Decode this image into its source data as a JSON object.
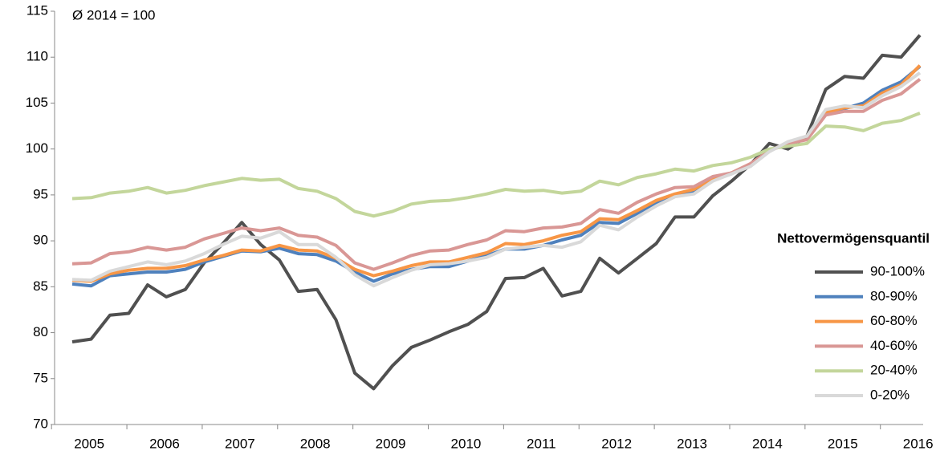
{
  "chart_data": {
    "type": "line",
    "annotation": "Ø 2014 = 100",
    "legend_title": "Nettovermögensquantil",
    "legend": "right",
    "categories": [
      "2005",
      null,
      null,
      null,
      "2006",
      null,
      null,
      null,
      "2007",
      null,
      null,
      null,
      "2008",
      null,
      null,
      null,
      "2009",
      null,
      null,
      null,
      "2010",
      null,
      null,
      null,
      "2011",
      null,
      null,
      null,
      "2012",
      null,
      null,
      null,
      "2013",
      null,
      null,
      null,
      "2014",
      null,
      null,
      null,
      "2015",
      null,
      null,
      null,
      "2016",
      null
    ],
    "ylim": [
      70,
      115
    ],
    "yticks": [
      70,
      75,
      80,
      85,
      90,
      95,
      100,
      105,
      110,
      115
    ],
    "grid": false,
    "series": [
      {
        "name": "90-100%",
        "color": "#505050",
        "values": [
          79.0,
          79.3,
          81.9,
          82.1,
          85.2,
          83.9,
          84.7,
          87.6,
          89.7,
          92.0,
          89.6,
          87.9,
          84.5,
          84.7,
          81.4,
          75.6,
          73.9,
          76.4,
          78.4,
          79.2,
          80.1,
          80.9,
          82.3,
          85.9,
          86.0,
          87.0,
          84.0,
          84.5,
          88.1,
          86.5,
          88.1,
          89.7,
          92.6,
          92.6,
          94.9,
          96.5,
          98.3,
          100.6,
          100.0,
          101.4,
          106.5,
          107.9,
          107.7,
          110.2,
          110.0,
          112.4
        ]
      },
      {
        "name": "80-90%",
        "color": "#4f81bd",
        "values": [
          85.3,
          85.1,
          86.2,
          86.4,
          86.6,
          86.6,
          86.9,
          87.7,
          88.3,
          88.9,
          88.8,
          89.2,
          88.6,
          88.5,
          87.8,
          86.6,
          85.6,
          86.4,
          86.9,
          87.2,
          87.2,
          87.8,
          88.4,
          89.1,
          89.1,
          89.5,
          90.1,
          90.6,
          92.0,
          91.9,
          93.0,
          94.1,
          94.9,
          95.4,
          96.6,
          97.3,
          98.3,
          99.8,
          100.7,
          101.3,
          103.9,
          104.4,
          105.0,
          106.4,
          107.3,
          109.0
        ]
      },
      {
        "name": "60-80%",
        "color": "#f79646",
        "values": [
          85.7,
          85.6,
          86.4,
          86.8,
          87.0,
          87.0,
          87.3,
          87.9,
          88.4,
          89.0,
          88.9,
          89.5,
          89.0,
          88.9,
          88.1,
          86.9,
          86.2,
          86.7,
          87.3,
          87.7,
          87.7,
          88.2,
          88.7,
          89.7,
          89.6,
          90.0,
          90.6,
          91.0,
          92.4,
          92.3,
          93.3,
          94.4,
          95.1,
          95.6,
          96.8,
          97.4,
          98.4,
          99.8,
          100.7,
          101.4,
          104.0,
          104.5,
          104.7,
          106.1,
          107.0,
          109.1
        ]
      },
      {
        "name": "40-60%",
        "color": "#d99795",
        "values": [
          87.5,
          87.6,
          88.6,
          88.8,
          89.3,
          89.0,
          89.3,
          90.2,
          90.8,
          91.4,
          91.1,
          91.4,
          90.6,
          90.4,
          89.5,
          87.6,
          86.9,
          87.6,
          88.4,
          88.9,
          89.0,
          89.6,
          90.1,
          91.1,
          91.0,
          91.4,
          91.5,
          91.9,
          93.4,
          93.0,
          94.2,
          95.1,
          95.8,
          95.9,
          97.0,
          97.4,
          98.4,
          99.8,
          100.6,
          101.0,
          103.7,
          104.1,
          104.1,
          105.3,
          106.0,
          107.6
        ]
      },
      {
        "name": "20-40%",
        "color": "#c3d69b",
        "values": [
          94.6,
          94.7,
          95.2,
          95.4,
          95.8,
          95.2,
          95.5,
          96.0,
          96.4,
          96.8,
          96.6,
          96.7,
          95.7,
          95.4,
          94.6,
          93.2,
          92.7,
          93.2,
          94.0,
          94.3,
          94.4,
          94.7,
          95.1,
          95.6,
          95.4,
          95.5,
          95.2,
          95.4,
          96.5,
          96.1,
          96.9,
          97.3,
          97.8,
          97.6,
          98.2,
          98.5,
          99.1,
          100.0,
          100.3,
          100.6,
          102.5,
          102.4,
          102.0,
          102.8,
          103.1,
          103.9
        ]
      },
      {
        "name": "0-20%",
        "color": "#d9d9d9",
        "values": [
          85.8,
          85.7,
          86.7,
          87.2,
          87.7,
          87.4,
          87.8,
          88.6,
          89.6,
          90.5,
          90.3,
          91.0,
          89.6,
          89.6,
          88.2,
          86.3,
          85.1,
          86.0,
          86.8,
          87.4,
          87.5,
          87.8,
          88.2,
          89.1,
          89.3,
          89.5,
          89.3,
          89.9,
          91.7,
          91.2,
          92.6,
          93.8,
          94.8,
          95.1,
          96.5,
          97.3,
          98.1,
          99.7,
          100.8,
          101.4,
          104.3,
          104.7,
          104.5,
          105.8,
          106.8,
          108.3
        ]
      }
    ]
  }
}
